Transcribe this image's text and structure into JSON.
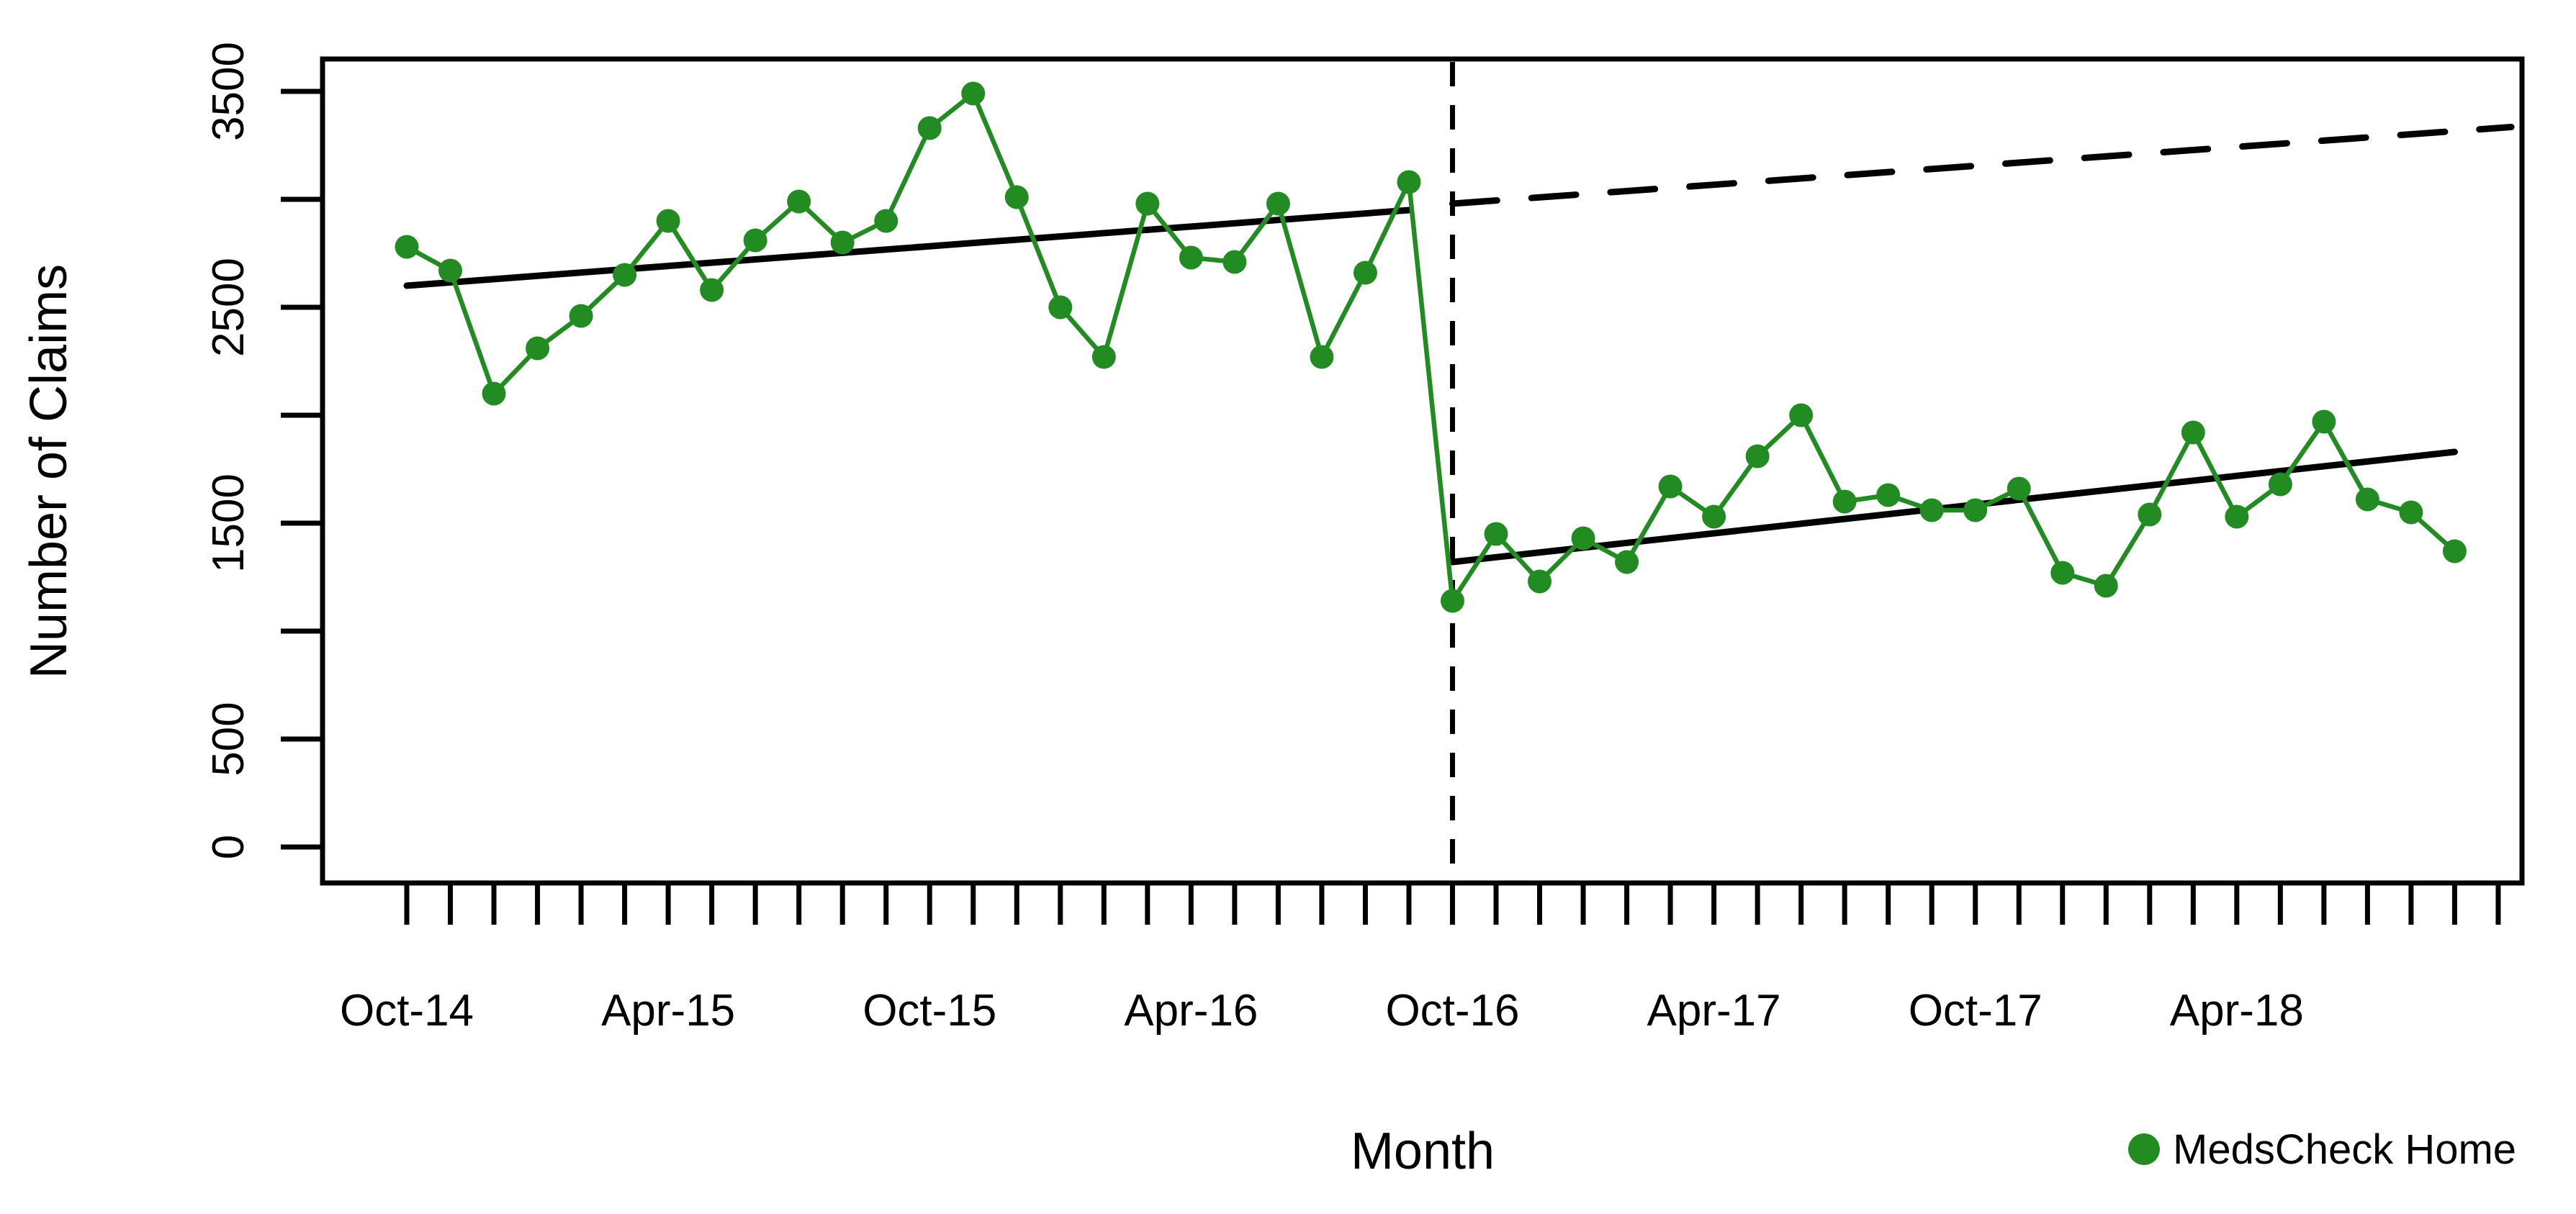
{
  "chart_data": {
    "type": "line",
    "title": "",
    "xlabel": "Month",
    "ylabel": "Number of Claims",
    "ylim": [
      0,
      3500
    ],
    "grid": false,
    "y_ticks": [
      0,
      500,
      1000,
      1500,
      2000,
      2500,
      3000,
      3500
    ],
    "y_tick_labels": [
      "0",
      "500",
      "",
      "1500",
      "",
      "2500",
      "",
      "3500"
    ],
    "x_tick_labeled_every_months": 6,
    "x_tick_labels_shown": [
      "Oct-14",
      "Apr-15",
      "Oct-15",
      "Apr-16",
      "Oct-16",
      "Apr-17",
      "Oct-17",
      "Apr-18"
    ],
    "x": [
      "Oct-14",
      "Nov-14",
      "Dec-14",
      "Jan-15",
      "Feb-15",
      "Mar-15",
      "Apr-15",
      "May-15",
      "Jun-15",
      "Jul-15",
      "Aug-15",
      "Sep-15",
      "Oct-15",
      "Nov-15",
      "Dec-15",
      "Jan-16",
      "Feb-16",
      "Mar-16",
      "Apr-16",
      "May-16",
      "Jun-16",
      "Jul-16",
      "Aug-16",
      "Sep-16",
      "Oct-16",
      "Nov-16",
      "Dec-16",
      "Jan-17",
      "Feb-17",
      "Mar-17",
      "Apr-17",
      "May-17",
      "Jun-17",
      "Jul-17",
      "Aug-17",
      "Sep-17",
      "Oct-17",
      "Nov-17",
      "Dec-17",
      "Jan-18",
      "Feb-18",
      "Mar-18",
      "Apr-18",
      "May-18",
      "Jun-18",
      "Jul-18",
      "Aug-18",
      "Sep-18"
    ],
    "series": [
      {
        "name": "MedsCheck Home",
        "color": "#228B22",
        "marker": "circle",
        "values": [
          2780,
          2670,
          2100,
          2310,
          2460,
          2650,
          2900,
          2580,
          2810,
          2990,
          2800,
          2900,
          3330,
          3490,
          3010,
          2500,
          2270,
          2980,
          2730,
          2710,
          2980,
          2270,
          2660,
          3080,
          1140,
          1450,
          1230,
          1430,
          1320,
          1670,
          1530,
          1810,
          2000,
          1600,
          1630,
          1560,
          1560,
          1660,
          1270,
          1210,
          1540,
          1920,
          1530,
          1680,
          1970,
          1610,
          1550,
          1370
        ]
      }
    ],
    "intervention_line": {
      "at": "Oct-16",
      "style": "dashed-vertical",
      "color": "#000000"
    },
    "trend_lines": [
      {
        "name": "pre-intervention-trend",
        "style": "solid",
        "color": "#000000",
        "start": {
          "x": "Oct-14",
          "value": 2600
        },
        "end": {
          "x": "Sep-16",
          "value": 2950
        }
      },
      {
        "name": "post-intervention-trend",
        "style": "solid",
        "color": "#000000",
        "start": {
          "x": "Oct-16",
          "value": 1320
        },
        "end": {
          "x": "Sep-18",
          "value": 1830
        }
      },
      {
        "name": "counterfactual-projection",
        "style": "dashed",
        "color": "#000000",
        "start": {
          "x": "Oct-16",
          "value": 2980
        },
        "end_months_after_last": 1.3,
        "end_value": 3335
      }
    ],
    "legend": [
      {
        "label": "MedsCheck Home",
        "color": "#228B22",
        "marker": "circle"
      }
    ],
    "legend_position": "bottom-right"
  }
}
